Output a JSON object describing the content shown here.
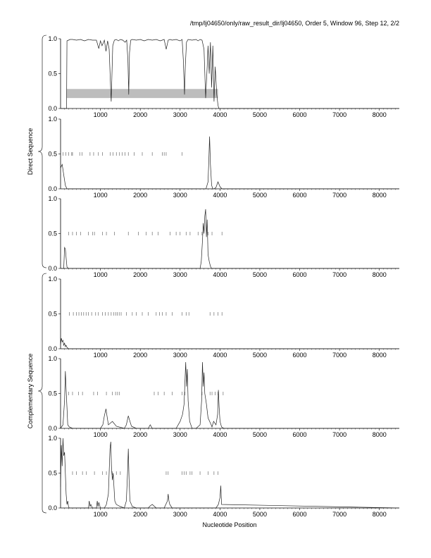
{
  "header": "/tmp/lj04650/only/raw_result_dir/lj04650, Order 5, Window 96, Step 12, 2/2",
  "chart_data": {
    "type": "line",
    "xlabel": "Nucleotide Position",
    "xlim": [
      0,
      8500
    ],
    "ylim": [
      0,
      1
    ],
    "xticks": [
      1000,
      2000,
      3000,
      4000,
      5000,
      6000,
      7000,
      8000
    ],
    "yticks": [
      0.0,
      0.5,
      1.0
    ],
    "ytick_labels": [
      "0.0",
      "0.5",
      "1.0"
    ],
    "group_labels": [
      "Direct Sequence",
      "Complementary Sequence"
    ],
    "panels": [
      {
        "shaded_region": {
          "x": [
            150,
            3950
          ],
          "y": [
            0.15,
            0.28
          ]
        },
        "tick_marks": [],
        "series": [
          {
            "x": [
              0,
              150,
              160,
              200,
              240,
              300,
              400,
              500,
              600,
              700,
              800,
              900,
              960,
              1000,
              1040,
              1100,
              1140,
              1180,
              1220,
              1250,
              1270,
              1290,
              1310,
              1350,
              1400,
              1450,
              1500,
              1560,
              1620,
              1660,
              1690,
              1710,
              1730,
              1760,
              1800,
              1900,
              2000,
              2100,
              2200,
              2300,
              2400,
              2500,
              2600,
              2650,
              2700,
              2750,
              2800,
              2900,
              3000,
              3050,
              3080,
              3110,
              3130,
              3160,
              3200,
              3300,
              3400,
              3450,
              3500,
              3550,
              3600,
              3640,
              3680,
              3700,
              3730,
              3760,
              3790,
              3820,
              3850,
              3880,
              3920,
              3950,
              3970,
              4000,
              4100,
              8500
            ],
            "y": [
              0,
              0,
              0.97,
              0.98,
              0.99,
              0.99,
              0.98,
              0.99,
              0.97,
              0.99,
              0.98,
              0.98,
              0.86,
              0.97,
              0.9,
              0.98,
              0.82,
              0.97,
              0.85,
              0.4,
              0.1,
              0.5,
              0.9,
              0.98,
              0.99,
              0.97,
              0.99,
              0.98,
              0.95,
              0.98,
              0.7,
              0.2,
              0.8,
              0.98,
              0.99,
              0.98,
              0.99,
              0.97,
              0.99,
              0.98,
              0.99,
              0.97,
              0.99,
              0.85,
              0.98,
              0.99,
              0.98,
              0.99,
              0.97,
              0.99,
              0.7,
              0.2,
              0.6,
              0.95,
              0.99,
              0.98,
              0.99,
              0.97,
              0.99,
              0.98,
              0.85,
              0.15,
              0.6,
              0.9,
              0.5,
              0.95,
              0.3,
              0.9,
              0.1,
              0.6,
              0.2,
              0.05,
              0,
              0,
              0,
              0
            ]
          }
        ]
      },
      {
        "tick_marks": [
          60,
          130,
          200,
          280,
          300,
          480,
          540,
          740,
          830,
          950,
          1050,
          1250,
          1320,
          1400,
          1480,
          1550,
          1620,
          1700,
          1850,
          2050,
          2300,
          2550,
          2600,
          2650,
          3050
        ],
        "series": [
          {
            "x": [
              0,
              40,
              80,
              120,
              160,
              200,
              1000,
              2000,
              3000,
              3500,
              3650,
              3700,
              3720,
              3740,
              3760,
              3790,
              3820,
              3850,
              3900,
              3950,
              4000,
              4050,
              8500
            ],
            "y": [
              0.3,
              0.35,
              0.2,
              0.05,
              0,
              0,
              0,
              0,
              0,
              0,
              0,
              0.1,
              0.4,
              0.75,
              0.35,
              0.05,
              0,
              0,
              0.02,
              0.1,
              0.03,
              0,
              0
            ]
          }
        ]
      },
      {
        "tick_marks": [
          200,
          300,
          400,
          500,
          700,
          800,
          850,
          1050,
          1150,
          1350,
          1700,
          1950,
          2150,
          2300,
          2450,
          2750,
          2900,
          3000,
          3150,
          3250,
          3450,
          3550,
          3700,
          3800,
          4050
        ],
        "series": [
          {
            "x": [
              0,
              80,
              100,
              120,
              140,
              160,
              200,
              1000,
              2000,
              3000,
              3500,
              3530,
              3560,
              3580,
              3600,
              3620,
              3640,
              3660,
              3680,
              3700,
              3730,
              3760,
              3790,
              4000,
              8500
            ],
            "y": [
              0,
              0,
              0.3,
              0.28,
              0.15,
              0.02,
              0,
              0,
              0,
              0,
              0,
              0.1,
              0.4,
              0.65,
              0.5,
              0.75,
              0.85,
              0.45,
              0.7,
              0.2,
              0.1,
              0.03,
              0,
              0,
              0
            ]
          }
        ]
      },
      {
        "tick_marks": [
          220,
          320,
          400,
          460,
          520,
          580,
          640,
          700,
          780,
          880,
          950,
          1050,
          1120,
          1200,
          1270,
          1330,
          1380,
          1420,
          1470,
          1520,
          1650,
          1800,
          1900,
          2050,
          2200,
          2400,
          2480,
          2550,
          2650,
          2800,
          3050,
          3150,
          3220,
          3750,
          3850,
          3950,
          4050
        ],
        "series": [
          {
            "x": [
              0,
              20,
              40,
              60,
              80,
              100,
              120,
              140,
              160,
              200,
              300,
              1000,
              2000,
              3000,
              4000,
              8500
            ],
            "y": [
              0.05,
              0.15,
              0.1,
              0.12,
              0.05,
              0.08,
              0.03,
              0.05,
              0.02,
              0,
              0,
              0,
              0,
              0,
              0,
              0
            ]
          }
        ]
      },
      {
        "tick_marks": [
          200,
          300,
          450,
          550,
          830,
          930,
          1150,
          1300,
          1380,
          1430,
          1480,
          2350,
          2450,
          2600,
          2800,
          3050,
          3120,
          3550,
          3750,
          3800,
          3880,
          3950,
          4080
        ],
        "series": [
          {
            "x": [
              0,
              60,
              100,
              120,
              140,
              160,
              180,
              220,
              300,
              1000,
              1060,
              1100,
              1140,
              1160,
              1200,
              1300,
              1400,
              1600,
              1650,
              1700,
              1740,
              1780,
              1900,
              2000,
              2200,
              2250,
              2300,
              2900,
              3000,
              3060,
              3100,
              3140,
              3160,
              3180,
              3200,
              3240,
              3300,
              3400,
              3500,
              3540,
              3560,
              3580,
              3600,
              3620,
              3660,
              3700,
              3780,
              3800,
              3840,
              3900,
              3940,
              3960,
              3980,
              4000,
              4040,
              4100,
              8500
            ],
            "y": [
              0,
              0.05,
              0.4,
              0.82,
              0.55,
              0.3,
              0.05,
              0.02,
              0,
              0,
              0.05,
              0.18,
              0.28,
              0.2,
              0.05,
              0.1,
              0.03,
              0,
              0.05,
              0.18,
              0.1,
              0.03,
              0,
              0,
              0,
              0.05,
              0,
              0,
              0.1,
              0.2,
              0.35,
              0.95,
              0.6,
              0.85,
              0.4,
              0.1,
              0,
              0,
              0.05,
              0.4,
              0.95,
              0.6,
              0.8,
              0.5,
              0.35,
              0.15,
              0.05,
              0.02,
              0.1,
              0.05,
              0.2,
              0.55,
              0.3,
              0.1,
              0.02,
              0,
              0
            ]
          }
        ]
      },
      {
        "tick_marks": [
          300,
          400,
          550,
          650,
          850,
          1050,
          1150,
          1300,
          1400,
          1500,
          2650,
          2700,
          3050,
          3100,
          3150,
          3250,
          3300,
          3500,
          3700,
          3850,
          3950
        ],
        "series": [
          {
            "x": [
              0,
              20,
              40,
              60,
              80,
              100,
              120,
              140,
              160,
              180,
              200,
              220,
              280,
              400,
              700,
              720,
              740,
              760,
              800,
              900,
              920,
              940,
              960,
              1000,
              1100,
              1150,
              1200,
              1240,
              1260,
              1280,
              1300,
              1320,
              1360,
              1400,
              1500,
              1600,
              1650,
              1680,
              1700,
              1720,
              1740,
              1800,
              1900,
              2000,
              2200,
              2250,
              2300,
              2400,
              2600,
              2680,
              2700,
              2720,
              2740,
              2800,
              2900,
              3000,
              3500,
              3800,
              3900,
              3960,
              4000,
              4020,
              4040,
              8500
            ],
            "y": [
              0.3,
              0.9,
              0.6,
              1.0,
              0.75,
              0.8,
              0.5,
              0.2,
              0.05,
              0.1,
              0.02,
              0,
              0,
              0,
              0,
              0.1,
              0.02,
              0.05,
              0,
              0,
              0.1,
              0.02,
              0.08,
              0,
              0,
              0.05,
              0.2,
              0.85,
              0.95,
              0.55,
              0.4,
              0.5,
              0.1,
              0.05,
              0.02,
              0,
              0.1,
              0.5,
              0.85,
              0.4,
              0.1,
              0.02,
              0,
              0,
              0,
              0.03,
              0.05,
              0,
              0,
              0.1,
              0.2,
              0.1,
              0.05,
              0,
              0,
              0,
              0,
              0,
              0,
              0.05,
              0.15,
              0.32,
              0.05,
              0
            ]
          }
        ]
      }
    ]
  }
}
